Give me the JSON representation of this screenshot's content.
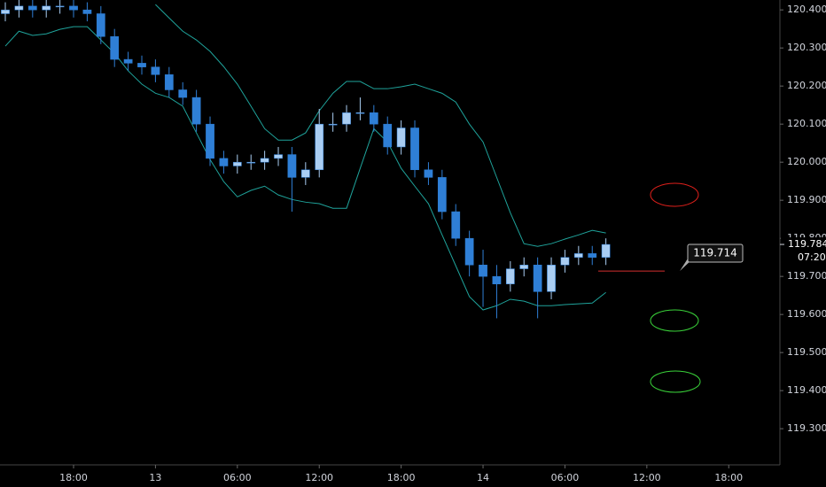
{
  "chart_data": {
    "type": "candlestick",
    "x": [
      -5,
      -4,
      -3,
      -2,
      -1,
      0,
      1,
      2,
      3,
      4,
      5,
      6,
      7,
      8,
      9,
      10,
      11,
      12,
      13,
      14,
      15,
      16,
      17,
      18,
      19,
      20,
      21,
      22,
      23,
      24,
      25,
      26,
      27,
      28,
      29,
      30,
      31,
      32,
      33,
      34,
      35,
      36,
      37,
      38,
      39
    ],
    "opens": [
      120.39,
      120.4,
      120.41,
      120.4,
      120.41,
      120.41,
      120.4,
      120.39,
      120.33,
      120.27,
      120.26,
      120.25,
      120.23,
      120.19,
      120.17,
      120.1,
      120.01,
      119.99,
      120.0,
      120.0,
      120.01,
      120.02,
      119.96,
      119.98,
      120.1,
      120.1,
      120.13,
      120.13,
      120.1,
      120.04,
      120.09,
      119.98,
      119.96,
      119.87,
      119.8,
      119.73,
      119.7,
      119.68,
      119.72,
      119.73,
      119.66,
      119.73,
      119.75,
      119.76,
      119.75
    ],
    "highs": [
      120.42,
      120.43,
      120.43,
      120.43,
      120.43,
      120.43,
      120.42,
      120.41,
      120.35,
      120.29,
      120.28,
      120.27,
      120.25,
      120.21,
      120.19,
      120.12,
      120.03,
      120.02,
      120.02,
      120.03,
      120.04,
      120.04,
      120.0,
      120.14,
      120.13,
      120.15,
      120.17,
      120.15,
      120.12,
      120.11,
      120.11,
      120.0,
      119.98,
      119.89,
      119.82,
      119.77,
      119.73,
      119.74,
      119.75,
      119.75,
      119.75,
      119.77,
      119.78,
      119.78,
      119.8
    ],
    "lows": [
      120.37,
      120.38,
      120.38,
      120.38,
      120.39,
      120.38,
      120.37,
      120.31,
      120.25,
      120.24,
      120.23,
      120.21,
      120.17,
      120.15,
      120.08,
      119.99,
      119.97,
      119.97,
      119.98,
      119.98,
      119.99,
      119.87,
      119.94,
      119.96,
      120.08,
      120.08,
      120.11,
      120.08,
      120.02,
      120.02,
      119.96,
      119.94,
      119.85,
      119.78,
      119.7,
      119.62,
      119.59,
      119.66,
      119.7,
      119.59,
      119.64,
      119.71,
      119.73,
      119.73,
      119.73
    ],
    "closes": [
      120.4,
      120.41,
      120.4,
      120.41,
      120.41,
      120.4,
      120.39,
      120.33,
      120.27,
      120.26,
      120.25,
      120.23,
      120.19,
      120.17,
      120.1,
      120.01,
      119.99,
      120.0,
      120.0,
      120.01,
      120.02,
      119.96,
      119.98,
      120.1,
      120.1,
      120.13,
      120.13,
      120.1,
      120.04,
      120.09,
      119.98,
      119.96,
      119.87,
      119.8,
      119.73,
      119.7,
      119.68,
      119.72,
      119.73,
      119.66,
      119.73,
      119.75,
      119.76,
      119.75,
      119.784
    ],
    "up_color": "#a9cdf2",
    "down_color": "#2f7fd6",
    "upper_band": {
      "color": "#1fa39b",
      "values": [
        null,
        null,
        null,
        null,
        null,
        null,
        null,
        null,
        null,
        null,
        null,
        120.414,
        120.379,
        120.344,
        120.321,
        120.291,
        120.251,
        120.205,
        120.147,
        120.088,
        120.058,
        120.058,
        120.077,
        120.135,
        120.181,
        120.212,
        120.212,
        120.193,
        120.193,
        120.198,
        120.205,
        120.193,
        120.181,
        120.158,
        120.1,
        120.053,
        119.96,
        119.867,
        119.786,
        119.779,
        119.786,
        119.798,
        119.809,
        119.821,
        119.814
      ]
    },
    "lower_band": {
      "color": "#1fa39b",
      "values": [
        120.305,
        120.344,
        120.333,
        120.337,
        120.349,
        120.356,
        120.356,
        120.321,
        120.286,
        120.24,
        120.205,
        120.181,
        120.17,
        120.147,
        120.077,
        120.007,
        119.949,
        119.909,
        119.926,
        119.937,
        119.914,
        119.902,
        119.895,
        119.891,
        119.879,
        119.879,
        119.984,
        120.088,
        120.053,
        119.984,
        119.937,
        119.891,
        119.809,
        119.728,
        119.647,
        119.612,
        119.623,
        119.64,
        119.635,
        119.623,
        119.623,
        119.626,
        119.628,
        119.63,
        119.658
      ]
    },
    "xlim": [
      -5.39,
      51.75
    ],
    "xticks": [
      {
        "value": 0,
        "label": "18:00"
      },
      {
        "value": 6,
        "label": "13"
      },
      {
        "value": 12,
        "label": "06:00"
      },
      {
        "value": 18,
        "label": "12:00"
      },
      {
        "value": 24,
        "label": "18:00"
      },
      {
        "value": 30,
        "label": "14"
      },
      {
        "value": 36,
        "label": "06:00"
      },
      {
        "value": 42,
        "label": "12:00"
      },
      {
        "value": 48,
        "label": "18:00"
      }
    ],
    "ylim": [
      119.205,
      120.426
    ],
    "yticks": [
      {
        "value": 120.4,
        "label": "120.400"
      },
      {
        "value": 120.3,
        "label": "120.300"
      },
      {
        "value": 120.2,
        "label": "120.200"
      },
      {
        "value": 120.1,
        "label": "120.100"
      },
      {
        "value": 120.0,
        "label": "120.000"
      },
      {
        "value": 119.9,
        "label": "119.900"
      },
      {
        "value": 119.8,
        "label": "119.800"
      },
      {
        "value": 119.7,
        "label": "119.700"
      },
      {
        "value": 119.6,
        "label": "119.600"
      },
      {
        "value": 119.5,
        "label": "119.500"
      },
      {
        "value": 119.4,
        "label": "119.400"
      },
      {
        "value": 119.3,
        "label": "119.300"
      }
    ],
    "last_price": 119.784,
    "countdown": "07:20",
    "price_line": 119.714,
    "price_line_color": "#d32f2f"
  }
}
